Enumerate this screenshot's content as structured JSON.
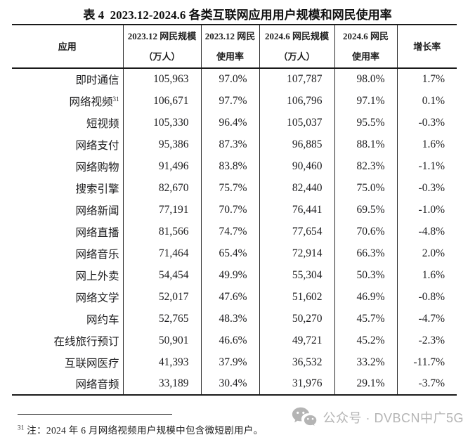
{
  "page": {
    "title": "表 4  2023.12-2024.6 各类互联网应用用户规模和网民使用率"
  },
  "table": {
    "header": [
      {
        "lines": [
          "应用"
        ]
      },
      {
        "lines": [
          "2023.12 网民规模",
          "（万人）"
        ]
      },
      {
        "lines": [
          "2023.12 网民",
          "使用率"
        ]
      },
      {
        "lines": [
          "2024.6 网民规模",
          "（万人）"
        ]
      },
      {
        "lines": [
          "2024.6 网民",
          "使用率"
        ]
      },
      {
        "lines": [
          "增长率"
        ]
      }
    ],
    "rows": [
      {
        "app": "即时通信",
        "footnote_ref": "",
        "cells": [
          "105,963",
          "97.0%",
          "107,787",
          "98.0%",
          "1.7%"
        ]
      },
      {
        "app": "网络视频",
        "footnote_ref": "31",
        "cells": [
          "106,671",
          "97.7%",
          "106,796",
          "97.1%",
          "0.1%"
        ]
      },
      {
        "app": "短视频",
        "footnote_ref": "",
        "cells": [
          "105,330",
          "96.4%",
          "105,037",
          "95.5%",
          "-0.3%"
        ]
      },
      {
        "app": "网络支付",
        "footnote_ref": "",
        "cells": [
          "95,386",
          "87.3%",
          "96,885",
          "88.1%",
          "1.6%"
        ]
      },
      {
        "app": "网络购物",
        "footnote_ref": "",
        "cells": [
          "91,496",
          "83.8%",
          "90,460",
          "82.3%",
          "-1.1%"
        ]
      },
      {
        "app": "搜索引擎",
        "footnote_ref": "",
        "cells": [
          "82,670",
          "75.7%",
          "82,440",
          "75.0%",
          "-0.3%"
        ]
      },
      {
        "app": "网络新闻",
        "footnote_ref": "",
        "cells": [
          "77,191",
          "70.7%",
          "76,441",
          "69.5%",
          "-1.0%"
        ]
      },
      {
        "app": "网络直播",
        "footnote_ref": "",
        "cells": [
          "81,566",
          "74.7%",
          "77,654",
          "70.6%",
          "-4.8%"
        ]
      },
      {
        "app": "网络音乐",
        "footnote_ref": "",
        "cells": [
          "71,464",
          "65.4%",
          "72,914",
          "66.3%",
          "2.0%"
        ]
      },
      {
        "app": "网上外卖",
        "footnote_ref": "",
        "cells": [
          "54,454",
          "49.9%",
          "55,304",
          "50.3%",
          "1.6%"
        ]
      },
      {
        "app": "网络文学",
        "footnote_ref": "",
        "cells": [
          "52,017",
          "47.6%",
          "51,602",
          "46.9%",
          "-0.8%"
        ]
      },
      {
        "app": "网约车",
        "footnote_ref": "",
        "cells": [
          "52,765",
          "48.3%",
          "50,270",
          "45.7%",
          "-4.7%"
        ]
      },
      {
        "app": "在线旅行预订",
        "footnote_ref": "",
        "cells": [
          "50,901",
          "46.6%",
          "49,721",
          "45.2%",
          "-2.3%"
        ]
      },
      {
        "app": "互联网医疗",
        "footnote_ref": "",
        "cells": [
          "41,393",
          "37.9%",
          "36,532",
          "33.2%",
          "-11.7%"
        ]
      },
      {
        "app": "网络音频",
        "footnote_ref": "",
        "cells": [
          "33,189",
          "30.4%",
          "31,976",
          "29.1%",
          "-3.7%"
        ]
      }
    ]
  },
  "footnote": {
    "marker": "31",
    "text": "注：2024 年 6 月网络视频用户规模中包含微短剧用户。"
  },
  "watermark": {
    "icon": "wechat-icon",
    "text": "公众号 · DVBCN中广5G"
  },
  "colors": {
    "text": "#1e1e1e",
    "border": "#1a1a1a",
    "watermark": "#b4b4b4"
  }
}
